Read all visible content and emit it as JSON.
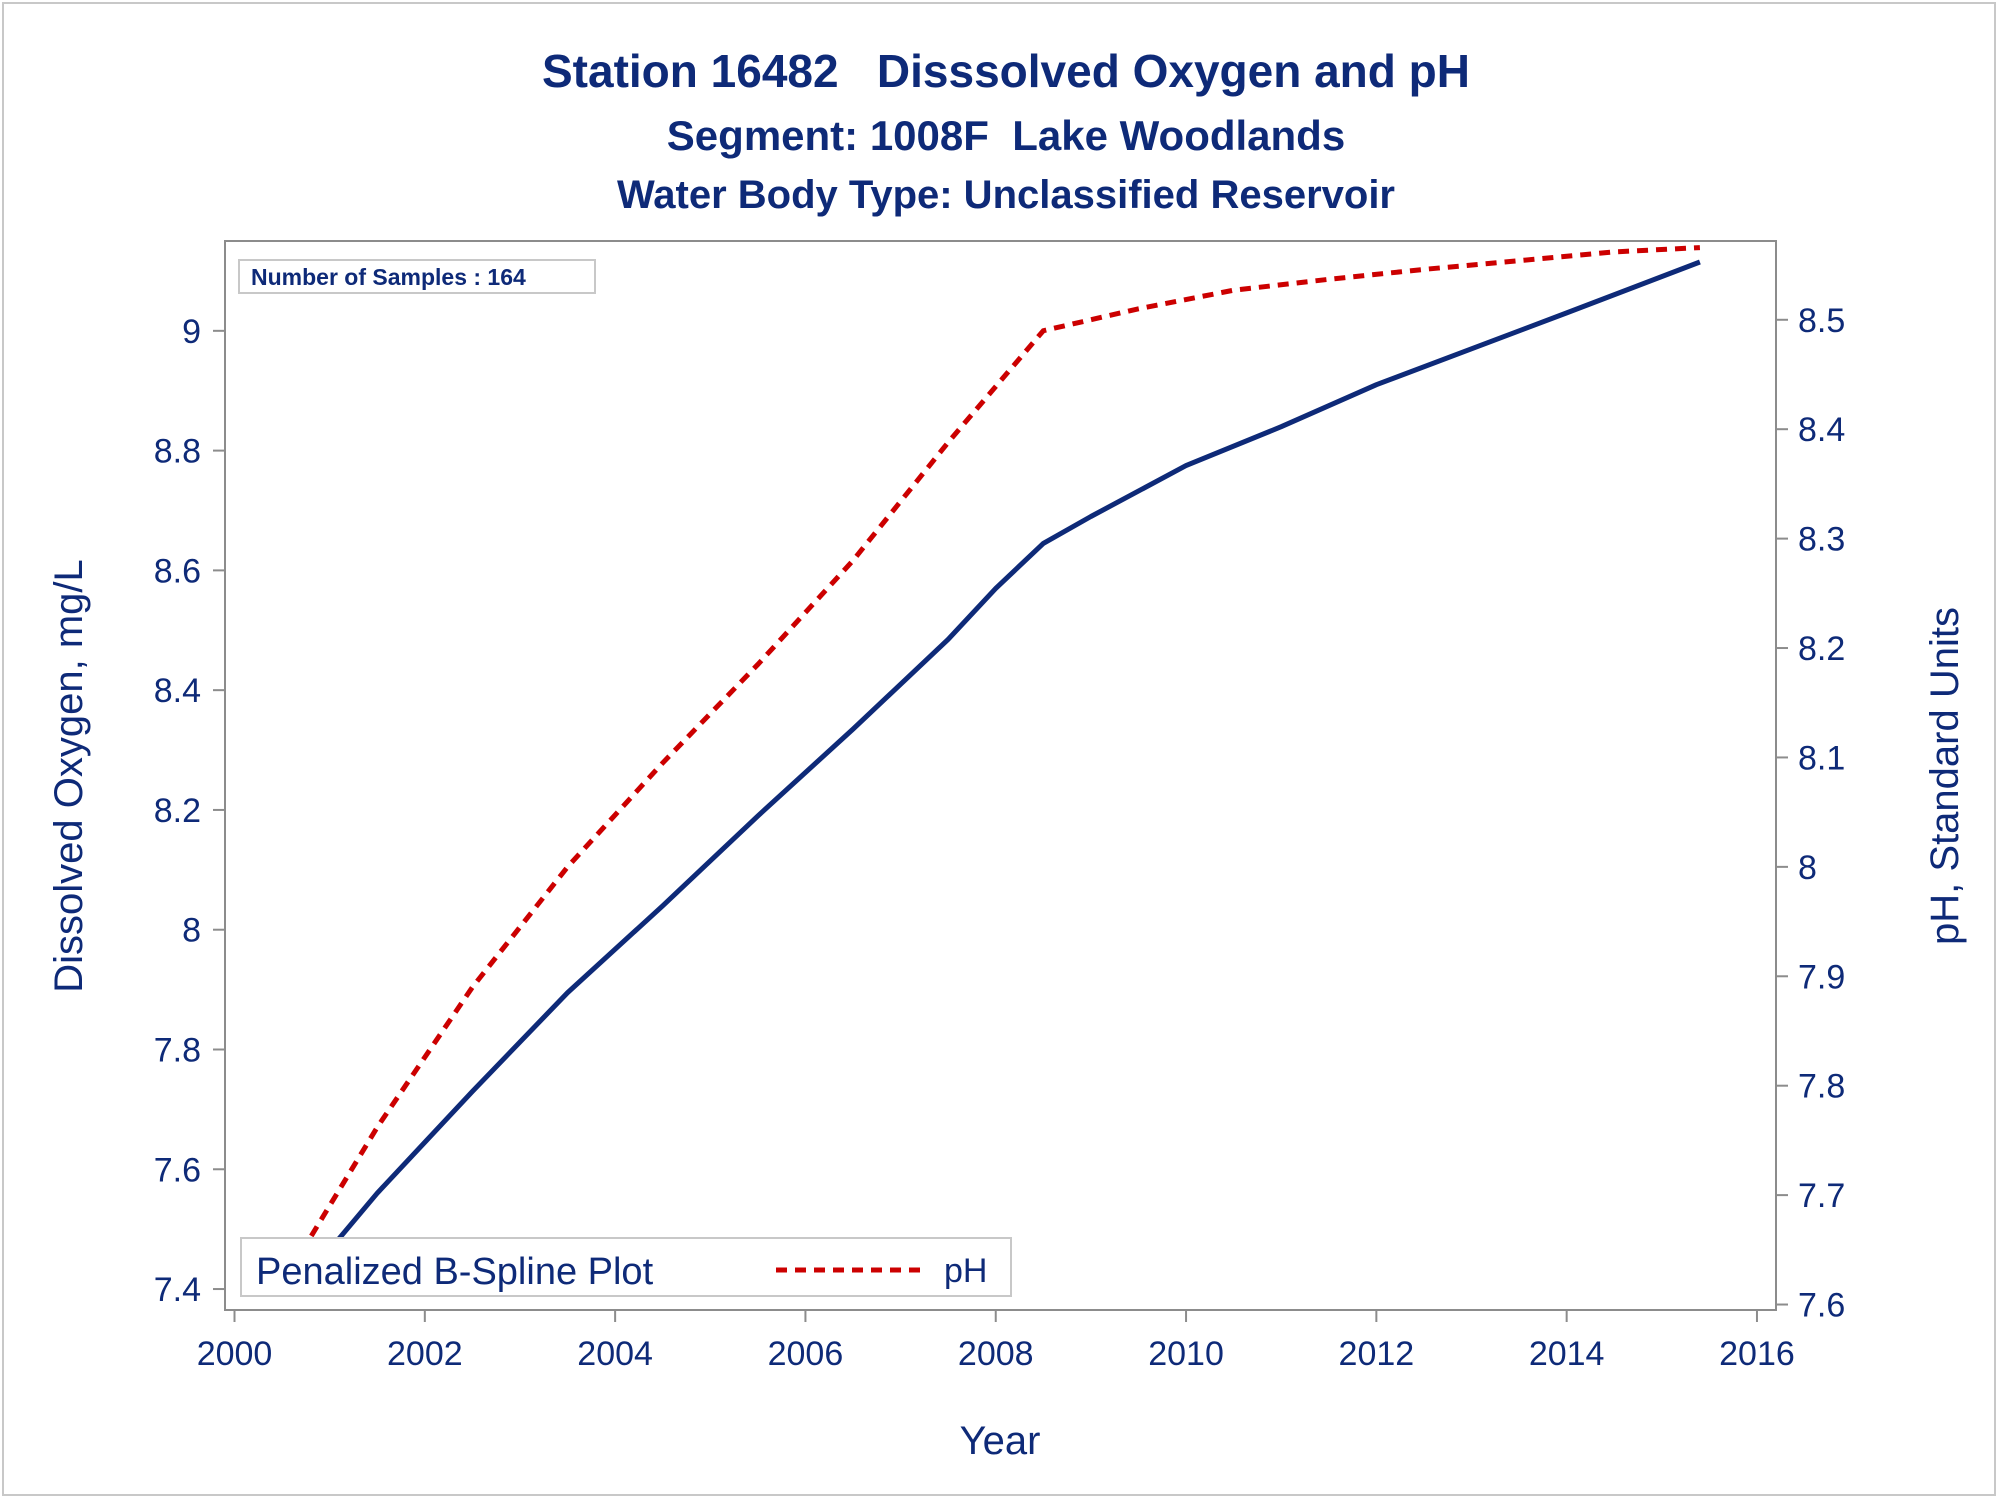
{
  "colors": {
    "text": "#0e2a78",
    "do_line": "#0e2a78",
    "ph_line": "#cc0000",
    "axis": "#8c8c8c",
    "frame": "#c8c8c8"
  },
  "chart_data": {
    "type": "line",
    "title": "Station 16482   Disssolved Oxygen and pH",
    "subtitle": "Segment: 1008F  Lake Woodlands",
    "subtitle2": "Water Body Type: Unclassified Reservoir",
    "xlabel": "Year",
    "ylabel_left": "Dissolved Oxygen, mg/L",
    "ylabel_right": "pH, Standard Units",
    "xlim": [
      1999.9,
      2016.2
    ],
    "ylim_left": [
      7.365,
      9.15
    ],
    "ylim_right": [
      7.595,
      8.572
    ],
    "x_ticks": [
      "2000",
      "2002",
      "2004",
      "2006",
      "2008",
      "2010",
      "2012",
      "2014",
      "2016"
    ],
    "y_left_ticks": [
      "7.4",
      "7.6",
      "7.8",
      "8",
      "8.2",
      "8.4",
      "8.6",
      "8.8",
      "9"
    ],
    "y_right_ticks": [
      "7.6",
      "7.7",
      "7.8",
      "7.9",
      "8",
      "8.1",
      "8.2",
      "8.3",
      "8.4",
      "8.5"
    ],
    "grid": false,
    "annotation": "Number of Samples : 164",
    "legend": {
      "placement": "bottom-left",
      "label": "Penalized B-Spline Plot",
      "entries": [
        "pH"
      ]
    },
    "series": [
      {
        "axis": "left",
        "x": [
          2000.6,
          2001.5,
          2002.5,
          2003.5,
          2004.5,
          2005.5,
          2006.5,
          2007.5,
          2008.0,
          2008.5,
          2009.0,
          2010.0,
          2011.0,
          2012.0,
          2013.0,
          2014.0,
          2015.4
        ],
        "values": [
          7.39,
          7.56,
          7.73,
          7.895,
          8.04,
          8.19,
          8.335,
          8.485,
          8.57,
          8.645,
          8.69,
          8.775,
          8.84,
          8.91,
          8.97,
          9.03,
          9.115
        ]
      },
      {
        "name": "pH",
        "axis": "right",
        "x": [
          2000.6,
          2001.5,
          2002.5,
          2003.5,
          2004.5,
          2005.5,
          2006.5,
          2007.5,
          2008.5,
          2009.5,
          2010.5,
          2011.5,
          2012.5,
          2013.5,
          2014.5,
          2015.4
        ],
        "values": [
          7.633,
          7.762,
          7.89,
          8.0,
          8.095,
          8.185,
          8.28,
          8.388,
          8.49,
          8.51,
          8.527,
          8.537,
          8.546,
          8.554,
          8.562,
          8.566
        ]
      }
    ]
  }
}
